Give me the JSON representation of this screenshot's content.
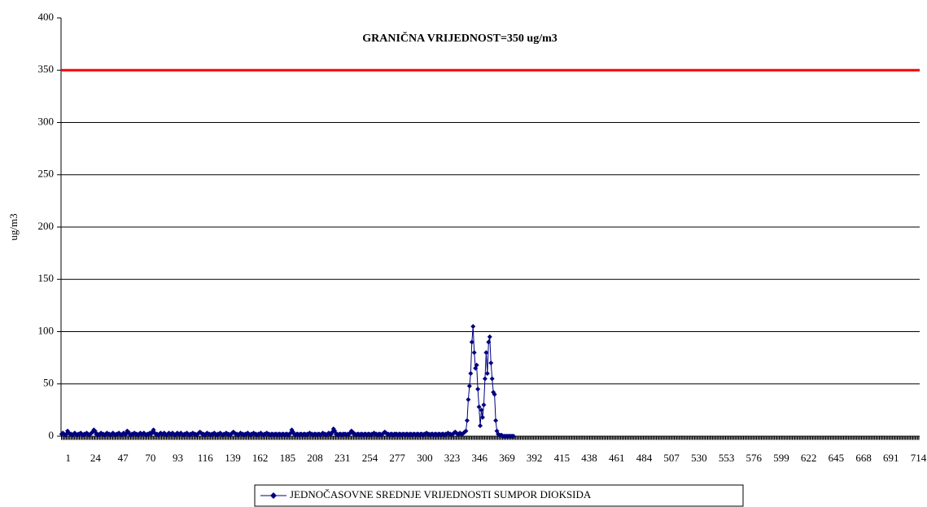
{
  "chart_data": {
    "type": "line",
    "title": "GRANIČNA VRIJEDNOST=350 ug/m3",
    "threshold": {
      "value": 350,
      "color": "#ff0000"
    },
    "y_label": "ug/m3",
    "x": [
      1,
      2,
      3,
      4,
      5,
      6,
      7,
      8,
      9,
      10,
      11,
      12,
      13,
      14,
      15,
      16,
      17,
      18,
      19,
      20,
      21,
      22,
      23,
      24,
      25,
      26,
      27,
      28,
      29,
      30,
      31,
      32,
      33,
      34,
      35,
      36,
      37,
      38,
      39,
      40,
      41,
      42,
      43,
      44,
      45,
      46,
      47,
      48,
      49,
      50,
      51,
      52,
      53,
      54,
      55,
      56,
      57,
      58,
      59,
      60,
      61,
      62,
      63,
      64,
      65,
      66,
      67,
      68,
      69,
      70,
      71,
      72,
      73,
      74,
      75,
      76,
      77,
      78,
      79,
      80,
      81,
      82,
      83,
      84,
      85,
      86,
      87,
      88,
      89,
      90,
      91,
      92,
      93,
      94,
      95,
      96,
      97,
      98,
      99,
      100,
      101,
      102,
      103,
      104,
      105,
      106,
      107,
      108,
      109,
      110,
      111,
      112,
      113,
      114,
      115,
      116,
      117,
      118,
      119,
      120,
      121,
      122,
      123,
      124,
      125,
      126,
      127,
      128,
      129,
      130,
      131,
      132,
      133,
      134,
      135,
      136,
      137,
      138,
      139,
      140,
      141,
      142,
      143,
      144,
      145,
      146,
      147,
      148,
      149,
      150,
      151,
      152,
      153,
      154,
      155,
      156,
      157,
      158,
      159,
      160,
      161,
      162,
      163,
      164,
      165,
      166,
      167,
      168,
      169,
      170,
      171,
      172,
      173,
      174,
      175,
      176,
      177,
      178,
      179,
      180,
      181,
      182,
      183,
      184,
      185,
      186,
      187,
      188,
      189,
      190,
      191,
      192,
      193,
      194,
      195,
      196,
      197,
      198,
      199,
      200,
      201,
      202,
      203,
      204,
      205,
      206,
      207,
      208,
      209,
      210,
      211,
      212,
      213,
      214,
      215,
      216,
      217,
      218,
      219,
      220,
      221,
      222,
      223,
      224,
      225,
      226,
      227,
      228,
      229,
      230,
      231,
      232,
      233,
      234,
      235,
      236,
      237,
      238,
      239,
      240,
      241,
      242,
      243,
      244,
      245,
      246,
      247,
      248,
      249,
      250,
      251,
      252,
      253,
      254,
      255,
      256,
      257,
      258,
      259,
      260,
      261,
      262,
      263,
      264,
      265,
      266,
      267,
      268,
      269,
      270,
      271,
      272,
      273,
      274,
      275,
      276,
      277,
      278,
      279,
      280,
      281,
      282,
      283,
      284,
      285,
      286,
      287,
      288,
      289,
      290,
      291,
      292,
      293,
      294,
      295,
      296,
      297,
      298,
      299,
      300,
      301,
      302,
      303,
      304,
      305,
      306,
      307,
      308,
      309,
      310,
      311,
      312,
      313,
      314,
      315,
      316,
      317,
      318,
      319,
      320,
      321,
      322,
      323,
      324,
      325,
      326,
      327,
      328,
      329,
      330,
      331,
      332,
      333,
      334,
      335,
      336,
      337,
      338,
      339,
      340,
      341,
      342,
      343,
      344,
      345,
      346,
      347,
      348,
      349,
      350,
      351,
      352,
      353,
      354,
      355,
      356,
      357,
      358,
      359,
      360,
      361,
      362,
      363,
      364,
      365,
      366,
      367,
      368,
      369,
      370,
      371,
      372,
      373,
      374,
      375,
      376,
      377,
      378,
      379,
      380
    ],
    "series": [
      {
        "name": "JEDNOČASOVNE SREDNJE VRIJEDNOSTI SUMPOR DIOKSIDA",
        "color": "#000080",
        "values": [
          2,
          3,
          2,
          1,
          2,
          5,
          3,
          2,
          2,
          1,
          2,
          3,
          2,
          1,
          2,
          2,
          3,
          2,
          1,
          2,
          2,
          3,
          2,
          1,
          2,
          3,
          4,
          6,
          5,
          2,
          2,
          1,
          2,
          3,
          2,
          2,
          1,
          2,
          3,
          2,
          2,
          1,
          2,
          3,
          2,
          1,
          2,
          2,
          3,
          2,
          1,
          2,
          3,
          2,
          2,
          5,
          4,
          2,
          1,
          2,
          2,
          3,
          2,
          2,
          1,
          2,
          3,
          2,
          2,
          3,
          2,
          1,
          2,
          2,
          3,
          2,
          4,
          6,
          3,
          2,
          2,
          1,
          2,
          3,
          2,
          2,
          3,
          2,
          1,
          2,
          3,
          2,
          2,
          3,
          2,
          1,
          2,
          3,
          2,
          2,
          3,
          2,
          1,
          2,
          2,
          3,
          2,
          1,
          2,
          2,
          3,
          2,
          2,
          1,
          2,
          3,
          4,
          3,
          2,
          2,
          1,
          2,
          3,
          2,
          2,
          1,
          2,
          2,
          3,
          2,
          1,
          2,
          2,
          3,
          2,
          1,
          2,
          2,
          3,
          2,
          2,
          1,
          2,
          3,
          4,
          3,
          2,
          2,
          1,
          2,
          3,
          2,
          2,
          1,
          2,
          2,
          3,
          2,
          1,
          2,
          2,
          3,
          2,
          2,
          1,
          2,
          2,
          3,
          2,
          1,
          2,
          2,
          3,
          2,
          2,
          1,
          2,
          2,
          1,
          2,
          2,
          1,
          2,
          2,
          1,
          2,
          2,
          1,
          2,
          2,
          1,
          2,
          3,
          6,
          4,
          2,
          1,
          2,
          2,
          1,
          2,
          2,
          1,
          2,
          2,
          1,
          2,
          2,
          3,
          2,
          2,
          1,
          2,
          2,
          1,
          2,
          2,
          1,
          2,
          3,
          2,
          2,
          1,
          2,
          3,
          2,
          2,
          4,
          7,
          5,
          2,
          2,
          1,
          2,
          2,
          1,
          2,
          2,
          2,
          1,
          2,
          2,
          3,
          5,
          4,
          2,
          2,
          1,
          2,
          2,
          1,
          2,
          2,
          1,
          2,
          2,
          1,
          2,
          2,
          1,
          2,
          2,
          3,
          2,
          2,
          1,
          2,
          2,
          1,
          2,
          3,
          4,
          3,
          2,
          2,
          1,
          2,
          2,
          1,
          2,
          2,
          2,
          1,
          2,
          2,
          1,
          2,
          2,
          1,
          2,
          2,
          1,
          2,
          2,
          1,
          2,
          2,
          1,
          2,
          2,
          1,
          2,
          2,
          1,
          2,
          2,
          3,
          2,
          2,
          1,
          2,
          2,
          1,
          2,
          2,
          1,
          2,
          2,
          1,
          2,
          2,
          1,
          2,
          2,
          3,
          2,
          2,
          1,
          2,
          3,
          4,
          3,
          2,
          2,
          3,
          2,
          2,
          3,
          4,
          5,
          15,
          35,
          48,
          60,
          90,
          105,
          80,
          65,
          68,
          45,
          28,
          10,
          25,
          18,
          30,
          55,
          80,
          60,
          90,
          95,
          70,
          55,
          42,
          40,
          15,
          5,
          2,
          1,
          1,
          1,
          0,
          0,
          0,
          0,
          0,
          0,
          0,
          0,
          0,
          0
        ]
      }
    ],
    "xlim": [
      0.5,
      720.5
    ],
    "xticks": [
      1,
      24,
      47,
      70,
      93,
      116,
      139,
      162,
      185,
      208,
      231,
      254,
      277,
      300,
      323,
      346,
      369,
      392,
      415,
      438,
      461,
      484,
      507,
      530,
      553,
      576,
      599,
      622,
      645,
      668,
      691,
      714
    ],
    "ylim": [
      0,
      400
    ],
    "yticks": [
      0,
      50,
      100,
      150,
      200,
      250,
      300,
      350,
      400
    ],
    "grid": true
  }
}
